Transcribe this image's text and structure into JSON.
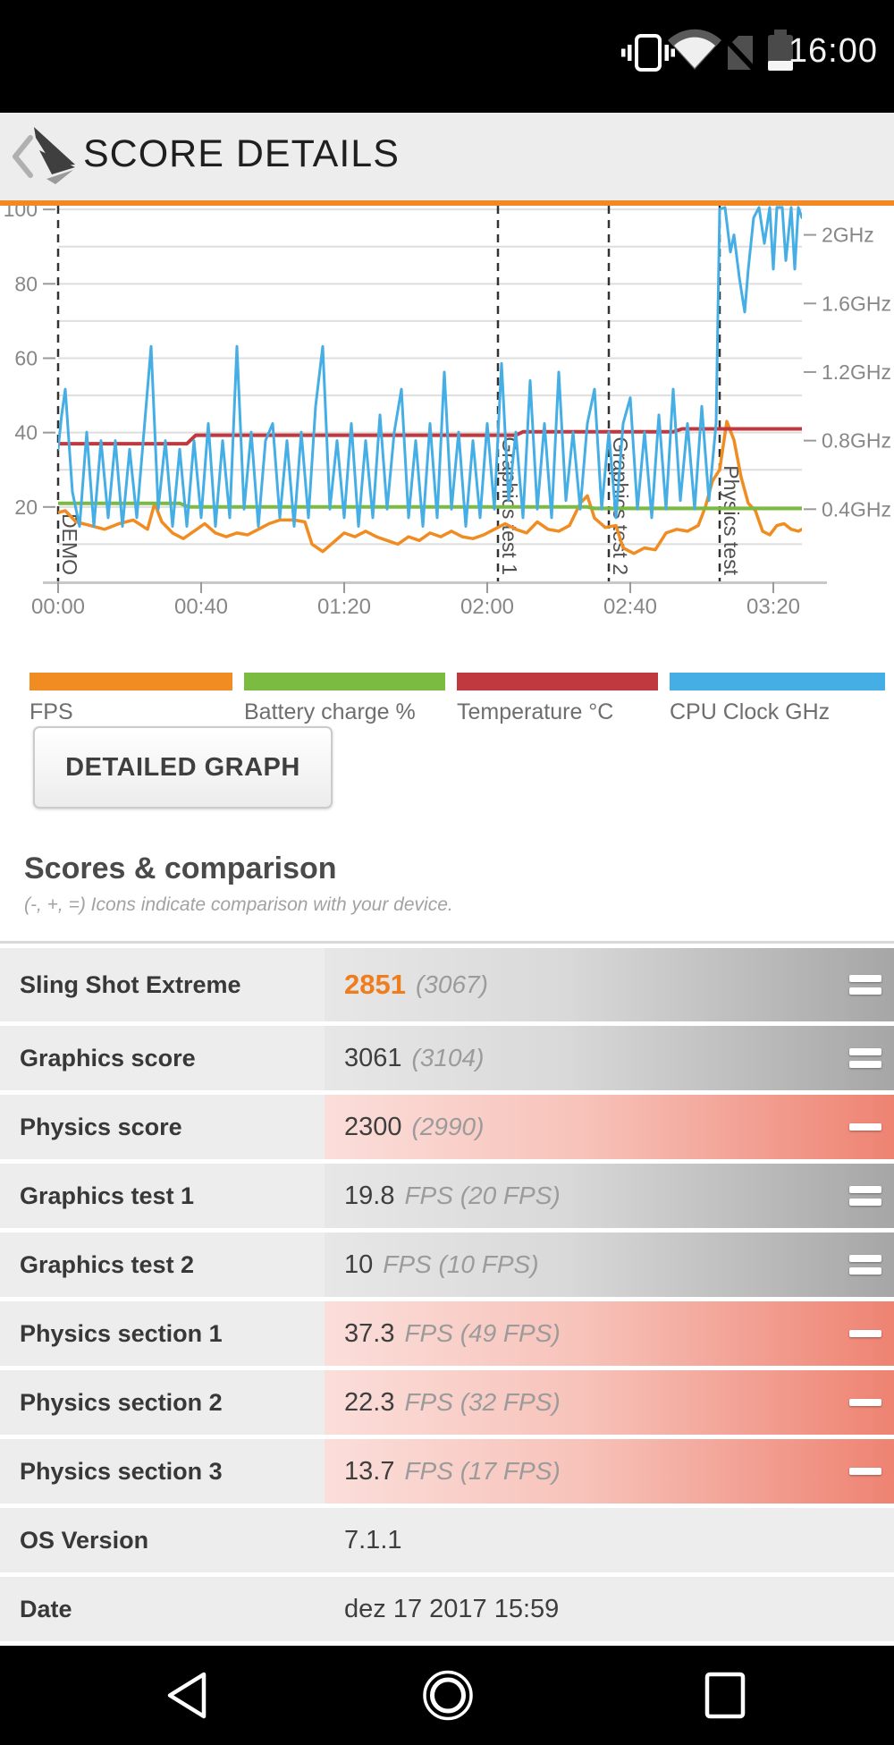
{
  "status_bar": {
    "time": "16:00"
  },
  "header": {
    "title": "SCORE DETAILS",
    "accent_color": "#f18a24"
  },
  "chart_data": {
    "type": "line",
    "title": "",
    "x_ticks": [
      "00:00",
      "00:40",
      "01:20",
      "02:00",
      "02:40",
      "03:20"
    ],
    "x_tick_seconds": [
      0,
      40,
      80,
      120,
      160,
      200
    ],
    "x_range_seconds": [
      0,
      208
    ],
    "left_axis": {
      "label": "",
      "ticks": [
        20,
        40,
        60,
        80,
        100
      ],
      "range": [
        0,
        101
      ]
    },
    "right_axis": {
      "unit": "GHz",
      "ticks": [
        "0.4GHz",
        "0.8GHz",
        "1.2GHz",
        "1.6GHz",
        "2GHz"
      ],
      "tick_values": [
        0.4,
        0.8,
        1.2,
        1.6,
        2.0
      ],
      "range": [
        0,
        2.17
      ]
    },
    "grid": {
      "horizontal_step": 10,
      "color": "#dedede"
    },
    "markers": [
      {
        "label": "DEMO",
        "t": 0
      },
      {
        "label": "Graphics test 1",
        "t": 123
      },
      {
        "label": "Graphics test 2",
        "t": 154
      },
      {
        "label": "Physics test",
        "t": 185
      }
    ],
    "series": [
      {
        "name": "FPS",
        "color": "#f08c21",
        "axis": "left",
        "width": 3.5,
        "points": [
          [
            0,
            18.5
          ],
          [
            2,
            19
          ],
          [
            5,
            16
          ],
          [
            9,
            15
          ],
          [
            13,
            14
          ],
          [
            17,
            15.5
          ],
          [
            21,
            16.5
          ],
          [
            25,
            14
          ],
          [
            27,
            21
          ],
          [
            29,
            16
          ],
          [
            32,
            13
          ],
          [
            35,
            11.5
          ],
          [
            38,
            13.5
          ],
          [
            41,
            15.5
          ],
          [
            44,
            13
          ],
          [
            47,
            12
          ],
          [
            50,
            13
          ],
          [
            53,
            12.5
          ],
          [
            56,
            14
          ],
          [
            59,
            15.5
          ],
          [
            62,
            16.5
          ],
          [
            66,
            16.5
          ],
          [
            69,
            16
          ],
          [
            71,
            10
          ],
          [
            74,
            8
          ],
          [
            77,
            10.5
          ],
          [
            80,
            13
          ],
          [
            83,
            12
          ],
          [
            86,
            13.5
          ],
          [
            89,
            12
          ],
          [
            92,
            11
          ],
          [
            95,
            10
          ],
          [
            98,
            12
          ],
          [
            101,
            11
          ],
          [
            104,
            13
          ],
          [
            107,
            12
          ],
          [
            110,
            13.5
          ],
          [
            113,
            12
          ],
          [
            116,
            11.5
          ],
          [
            119,
            12.5
          ],
          [
            122,
            14
          ],
          [
            125,
            15.5
          ],
          [
            128,
            14
          ],
          [
            131,
            13
          ],
          [
            134,
            16
          ],
          [
            137,
            14
          ],
          [
            140,
            13.5
          ],
          [
            143,
            15
          ],
          [
            146,
            21
          ],
          [
            148,
            23
          ],
          [
            150,
            17
          ],
          [
            153,
            14.5
          ],
          [
            156,
            15
          ],
          [
            158,
            9
          ],
          [
            161,
            7.5
          ],
          [
            164,
            9
          ],
          [
            167,
            8.5
          ],
          [
            170,
            13
          ],
          [
            173,
            14
          ],
          [
            176,
            13.5
          ],
          [
            179,
            15
          ],
          [
            181,
            20
          ],
          [
            183,
            27
          ],
          [
            185,
            30
          ],
          [
            187,
            43
          ],
          [
            189,
            38
          ],
          [
            191,
            28
          ],
          [
            193,
            21
          ],
          [
            195,
            19
          ],
          [
            197,
            13.5
          ],
          [
            199,
            12.5
          ],
          [
            201,
            15
          ],
          [
            203,
            15.5
          ],
          [
            205,
            14
          ],
          [
            207,
            13.5
          ],
          [
            208,
            14
          ]
        ]
      },
      {
        "name": "Battery charge %",
        "color": "#7cbb42",
        "axis": "left",
        "width": 4,
        "points": [
          [
            0,
            21
          ],
          [
            34,
            21
          ],
          [
            36.5,
            20
          ],
          [
            148,
            20
          ],
          [
            150,
            19.6
          ],
          [
            208,
            19.6
          ]
        ]
      },
      {
        "name": "Temperature °C",
        "color": "#c0393f",
        "axis": "left",
        "width": 4,
        "points": [
          [
            0,
            37
          ],
          [
            36,
            37
          ],
          [
            38.5,
            39.3
          ],
          [
            128,
            39.3
          ],
          [
            130,
            40.2
          ],
          [
            172,
            40.2
          ],
          [
            174.5,
            41
          ],
          [
            208,
            41
          ]
        ]
      },
      {
        "name": "CPU Clock GHz",
        "color": "#45aee5",
        "axis": "right",
        "width": 3,
        "points": [
          [
            0,
            0.75
          ],
          [
            1,
            0.95
          ],
          [
            2,
            1.1
          ],
          [
            4,
            0.5
          ],
          [
            6,
            0.3
          ],
          [
            8,
            0.85
          ],
          [
            10,
            0.3
          ],
          [
            12,
            0.8
          ],
          [
            14,
            0.35
          ],
          [
            16,
            0.8
          ],
          [
            18,
            0.3
          ],
          [
            20,
            0.75
          ],
          [
            22,
            0.35
          ],
          [
            24,
            0.85
          ],
          [
            26,
            1.35
          ],
          [
            28,
            0.4
          ],
          [
            30,
            0.8
          ],
          [
            32,
            0.3
          ],
          [
            34,
            0.75
          ],
          [
            36,
            0.3
          ],
          [
            38,
            0.8
          ],
          [
            40,
            0.35
          ],
          [
            42,
            0.9
          ],
          [
            44,
            0.3
          ],
          [
            46,
            0.8
          ],
          [
            48,
            0.35
          ],
          [
            50,
            1.35
          ],
          [
            52,
            0.4
          ],
          [
            54,
            0.85
          ],
          [
            56,
            0.3
          ],
          [
            58,
            0.8
          ],
          [
            60,
            0.9
          ],
          [
            62,
            0.35
          ],
          [
            64,
            0.8
          ],
          [
            66,
            0.3
          ],
          [
            68,
            0.85
          ],
          [
            70,
            0.35
          ],
          [
            72,
            1.0
          ],
          [
            74,
            1.35
          ],
          [
            76,
            0.4
          ],
          [
            78,
            0.8
          ],
          [
            80,
            0.35
          ],
          [
            82,
            0.9
          ],
          [
            84,
            0.3
          ],
          [
            86,
            0.8
          ],
          [
            88,
            0.35
          ],
          [
            90,
            0.95
          ],
          [
            92,
            0.4
          ],
          [
            94,
            0.85
          ],
          [
            96,
            1.1
          ],
          [
            98,
            0.35
          ],
          [
            100,
            0.8
          ],
          [
            102,
            0.3
          ],
          [
            104,
            0.9
          ],
          [
            106,
            0.35
          ],
          [
            108,
            1.2
          ],
          [
            110,
            0.4
          ],
          [
            112,
            0.85
          ],
          [
            114,
            0.3
          ],
          [
            116,
            0.8
          ],
          [
            118,
            0.35
          ],
          [
            120,
            0.9
          ],
          [
            122,
            0.4
          ],
          [
            124,
            1.25
          ],
          [
            126,
            0.45
          ],
          [
            128,
            0.85
          ],
          [
            130,
            0.35
          ],
          [
            132,
            1.15
          ],
          [
            134,
            0.4
          ],
          [
            136,
            0.9
          ],
          [
            138,
            0.35
          ],
          [
            140,
            1.2
          ],
          [
            142,
            0.45
          ],
          [
            144,
            0.85
          ],
          [
            146,
            0.4
          ],
          [
            148,
            0.9
          ],
          [
            150,
            1.1
          ],
          [
            152,
            0.4
          ],
          [
            154,
            0.85
          ],
          [
            156,
            0.35
          ],
          [
            158,
            0.9
          ],
          [
            160,
            1.05
          ],
          [
            162,
            0.4
          ],
          [
            164,
            0.85
          ],
          [
            166,
            0.35
          ],
          [
            168,
            0.95
          ],
          [
            170,
            0.4
          ],
          [
            172,
            1.1
          ],
          [
            174,
            0.45
          ],
          [
            176,
            0.9
          ],
          [
            178,
            0.4
          ],
          [
            180,
            1.0
          ],
          [
            182,
            0.45
          ],
          [
            184,
            0.9
          ],
          [
            185,
            2.15
          ],
          [
            186.5,
            2.16
          ],
          [
            188,
            1.9
          ],
          [
            189,
            2.0
          ],
          [
            190.5,
            1.75
          ],
          [
            192,
            1.55
          ],
          [
            193,
            1.8
          ],
          [
            194.5,
            2.1
          ],
          [
            196,
            2.16
          ],
          [
            197.5,
            1.95
          ],
          [
            199,
            2.16
          ],
          [
            200,
            1.8
          ],
          [
            201,
            2.16
          ],
          [
            202.5,
            2.16
          ],
          [
            203.5,
            1.85
          ],
          [
            205,
            2.16
          ],
          [
            206,
            1.8
          ],
          [
            207,
            2.16
          ],
          [
            208,
            2.1
          ]
        ]
      }
    ]
  },
  "detailed_graph_button": "DETAILED GRAPH",
  "scores_section": {
    "title": "Scores & comparison",
    "subtitle": "(-, +, =) Icons indicate comparison with your device.",
    "rows": [
      {
        "label": "Sling Shot Extreme",
        "value": "2851",
        "ref": "(3067)",
        "comparison": "equal",
        "tint": "gray",
        "highlight": true
      },
      {
        "label": "Graphics score",
        "value": "3061",
        "ref": "(3104)",
        "comparison": "equal",
        "tint": "gray",
        "highlight": false
      },
      {
        "label": "Physics score",
        "value": "2300",
        "ref": "(2990)",
        "comparison": "minus",
        "tint": "red",
        "highlight": false
      },
      {
        "label": "Graphics test 1",
        "value": "19.8",
        "ref": "FPS (20 FPS)",
        "comparison": "equal",
        "tint": "gray",
        "highlight": false
      },
      {
        "label": "Graphics test 2",
        "value": "10",
        "ref": "FPS (10 FPS)",
        "comparison": "equal",
        "tint": "gray",
        "highlight": false
      },
      {
        "label": "Physics section 1",
        "value": "37.3",
        "ref": "FPS (49 FPS)",
        "comparison": "minus",
        "tint": "red",
        "highlight": false
      },
      {
        "label": "Physics section 2",
        "value": "22.3",
        "ref": "FPS (32 FPS)",
        "comparison": "minus",
        "tint": "red",
        "highlight": false
      },
      {
        "label": "Physics section 3",
        "value": "13.7",
        "ref": "FPS (17 FPS)",
        "comparison": "minus",
        "tint": "red",
        "highlight": false
      },
      {
        "label": "OS Version",
        "value": "7.1.1",
        "ref": "",
        "comparison": "none",
        "tint": "plain",
        "highlight": false
      },
      {
        "label": "Date",
        "value": "dez 17 2017 15:59",
        "ref": "",
        "comparison": "none",
        "tint": "plain",
        "highlight": false
      }
    ]
  }
}
